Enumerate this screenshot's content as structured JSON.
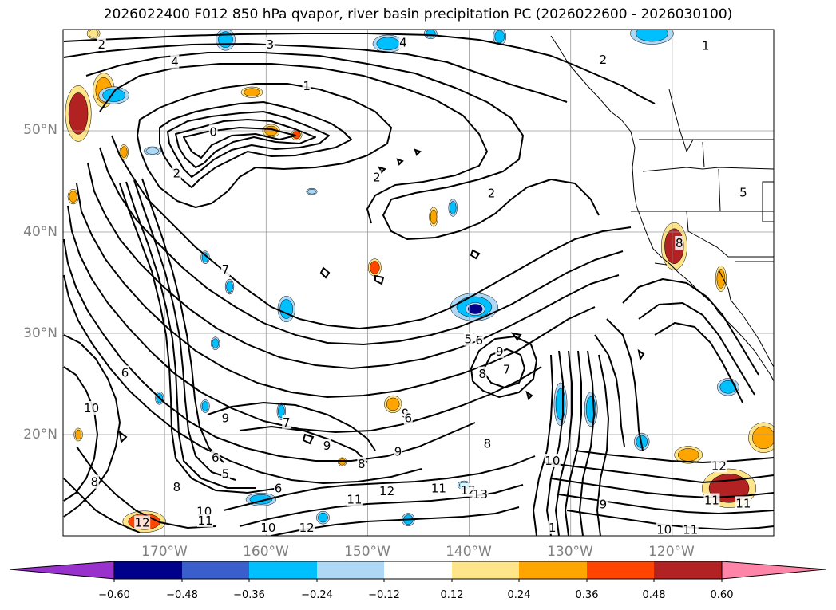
{
  "title": "2026022400 F012 850 hPa qvapor, river basin precipitation PC (2026022600 - 2026030100)",
  "lat_labels": [
    "50°N",
    "40°N",
    "30°N",
    "20°N"
  ],
  "lon_labels": [
    "170°W",
    "160°W",
    "150°W",
    "140°W",
    "130°W",
    "120°W"
  ],
  "map_extent": {
    "lon_min": -180,
    "lon_max": -110,
    "lat_min": 10,
    "lat_max": 60
  },
  "colorbar": {
    "ticks": [
      "−0.60",
      "−0.48",
      "−0.36",
      "−0.24",
      "−0.12",
      "0.12",
      "0.24",
      "0.36",
      "0.48",
      "0.60"
    ],
    "colors": [
      "#9932cc",
      "#00008b",
      "#3a5fcd",
      "#00bfff",
      "#add8f6",
      "#ffffff",
      "#ffe58a",
      "#ffa500",
      "#ff4500",
      "#b22222",
      "#ff85a8"
    ]
  },
  "contour_labels": [
    {
      "text": "2",
      "lon": -176.2,
      "lat": 58.5
    },
    {
      "text": "3",
      "lon": -159.6,
      "lat": 58.5
    },
    {
      "text": "4",
      "lon": -146.5,
      "lat": 58.7
    },
    {
      "text": "4",
      "lon": -169.0,
      "lat": 56.8
    },
    {
      "text": "1",
      "lon": -156.0,
      "lat": 54.4
    },
    {
      "text": "0",
      "lon": -165.2,
      "lat": 49.9
    },
    {
      "text": "2",
      "lon": -168.8,
      "lat": 45.8
    },
    {
      "text": "2",
      "lon": -149.1,
      "lat": 45.4
    },
    {
      "text": "2",
      "lon": -137.8,
      "lat": 43.8
    },
    {
      "text": "2",
      "lon": -126.8,
      "lat": 57.0
    },
    {
      "text": "5",
      "lon": -113.0,
      "lat": 43.9
    },
    {
      "text": "8",
      "lon": -119.3,
      "lat": 38.9
    },
    {
      "text": "5",
      "lon": -140.1,
      "lat": 29.4
    },
    {
      "text": "6",
      "lon": -139.0,
      "lat": 29.3
    },
    {
      "text": "9",
      "lon": -137.0,
      "lat": 28.2
    },
    {
      "text": "8",
      "lon": -138.7,
      "lat": 26.0
    },
    {
      "text": "7",
      "lon": -136.3,
      "lat": 26.4
    },
    {
      "text": "10",
      "lon": -177.2,
      "lat": 22.6
    },
    {
      "text": "6",
      "lon": -173.9,
      "lat": 26.1
    },
    {
      "text": "9",
      "lon": -164.0,
      "lat": 21.6
    },
    {
      "text": "7",
      "lon": -158.0,
      "lat": 21.2
    },
    {
      "text": "6",
      "lon": -165.0,
      "lat": 17.7
    },
    {
      "text": "5",
      "lon": -164.0,
      "lat": 16.1
    },
    {
      "text": "6",
      "lon": -158.8,
      "lat": 14.7
    },
    {
      "text": "8",
      "lon": -176.9,
      "lat": 15.3
    },
    {
      "text": "8",
      "lon": -168.8,
      "lat": 14.8
    },
    {
      "text": "9",
      "lon": -154.0,
      "lat": 18.9
    },
    {
      "text": "8",
      "lon": -150.6,
      "lat": 17.1
    },
    {
      "text": "9",
      "lon": -147.0,
      "lat": 18.3
    },
    {
      "text": "9",
      "lon": -146.3,
      "lat": 22.1
    },
    {
      "text": "6",
      "lon": -146.0,
      "lat": 21.6
    },
    {
      "text": "8",
      "lon": -138.2,
      "lat": 19.1
    },
    {
      "text": "10",
      "lon": -131.8,
      "lat": 17.4
    },
    {
      "text": "10",
      "lon": -166.1,
      "lat": 12.4
    },
    {
      "text": "11",
      "lon": -166.0,
      "lat": 11.5
    },
    {
      "text": "12",
      "lon": -172.2,
      "lat": 11.3
    },
    {
      "text": "10",
      "lon": -159.8,
      "lat": 10.8
    },
    {
      "text": "12",
      "lon": -156.0,
      "lat": 10.8
    },
    {
      "text": "11",
      "lon": -151.3,
      "lat": 13.6
    },
    {
      "text": "12",
      "lon": -148.1,
      "lat": 14.4
    },
    {
      "text": "11",
      "lon": -143.0,
      "lat": 14.7
    },
    {
      "text": "12",
      "lon": -140.1,
      "lat": 14.5
    },
    {
      "text": "13",
      "lon": -138.9,
      "lat": 14.1
    },
    {
      "text": "9",
      "lon": -126.8,
      "lat": 13.1
    },
    {
      "text": "10",
      "lon": -120.8,
      "lat": 10.6
    },
    {
      "text": "11",
      "lon": -118.2,
      "lat": 10.6
    },
    {
      "text": "11",
      "lon": -116.1,
      "lat": 13.5
    },
    {
      "text": "11",
      "lon": -113.0,
      "lat": 13.2
    },
    {
      "text": "12",
      "lon": -115.4,
      "lat": 16.9
    },
    {
      "text": "1",
      "lon": -131.8,
      "lat": 10.8
    },
    {
      "text": "1",
      "lon": -116.7,
      "lat": 58.4
    },
    {
      "text": "7",
      "lon": -164.0,
      "lat": 36.3
    }
  ],
  "precip_patches": [
    {
      "lon": -178.5,
      "lat": 51.7,
      "rx": 12,
      "ry": 26,
      "level": 0.48
    },
    {
      "lon": -176.0,
      "lat": 54.0,
      "rx": 10,
      "ry": 16,
      "level": 0.24
    },
    {
      "lon": -161.4,
      "lat": 53.8,
      "rx": 10,
      "ry": 5,
      "level": 0.24
    },
    {
      "lon": -174.0,
      "lat": 47.9,
      "rx": 4,
      "ry": 7,
      "level": 0.24
    },
    {
      "lon": -179.0,
      "lat": 43.5,
      "rx": 5,
      "ry": 7,
      "level": 0.24
    },
    {
      "lon": -159.5,
      "lat": 50.0,
      "rx": 8,
      "ry": 6,
      "level": 0.24
    },
    {
      "lon": -157.0,
      "lat": 49.6,
      "rx": 5,
      "ry": 5,
      "level": 0.36
    },
    {
      "lon": -149.3,
      "lat": 36.5,
      "rx": 6,
      "ry": 8,
      "level": 0.36
    },
    {
      "lon": -143.5,
      "lat": 41.5,
      "rx": 4,
      "ry": 9,
      "level": 0.24
    },
    {
      "lon": -119.8,
      "lat": 38.6,
      "rx": 12,
      "ry": 22,
      "level": 0.48
    },
    {
      "lon": -115.2,
      "lat": 35.4,
      "rx": 5,
      "ry": 12,
      "level": 0.24
    },
    {
      "lon": -114.4,
      "lat": 14.7,
      "rx": 25,
      "ry": 18,
      "level": 0.48
    },
    {
      "lon": -118.4,
      "lat": 18.0,
      "rx": 13,
      "ry": 8,
      "level": 0.24
    },
    {
      "lon": -111.0,
      "lat": 19.7,
      "rx": 14,
      "ry": 14,
      "level": 0.24
    },
    {
      "lon": -172.0,
      "lat": 11.4,
      "rx": 20,
      "ry": 10,
      "level": 0.36
    },
    {
      "lon": -147.5,
      "lat": 23.0,
      "rx": 8,
      "ry": 8,
      "level": 0.24
    },
    {
      "lon": -178.5,
      "lat": 20.0,
      "rx": 4,
      "ry": 6,
      "level": 0.24
    },
    {
      "lon": -152.5,
      "lat": 17.3,
      "rx": 4,
      "ry": 4,
      "level": 0.24
    },
    {
      "lon": -177.0,
      "lat": 59.6,
      "rx": 6,
      "ry": 5,
      "level": 0.12
    },
    {
      "lon": -164.0,
      "lat": 59.0,
      "rx": 9,
      "ry": 10,
      "level": -0.24
    },
    {
      "lon": -148.0,
      "lat": 58.6,
      "rx": 14,
      "ry": 8,
      "level": -0.24
    },
    {
      "lon": -143.8,
      "lat": 59.6,
      "rx": 6,
      "ry": 5,
      "level": -0.24
    },
    {
      "lon": -137.0,
      "lat": 59.3,
      "rx": 6,
      "ry": 8,
      "level": -0.24
    },
    {
      "lon": -122.0,
      "lat": 59.6,
      "rx": 20,
      "ry": 10,
      "level": -0.24
    },
    {
      "lon": -139.5,
      "lat": 32.6,
      "rx": 22,
      "ry": 13,
      "level": -0.24
    },
    {
      "lon": -139.4,
      "lat": 32.4,
      "rx": 9,
      "ry": 6,
      "level": -0.48
    },
    {
      "lon": -158.0,
      "lat": 32.4,
      "rx": 8,
      "ry": 12,
      "level": -0.24
    },
    {
      "lon": -175.0,
      "lat": 53.5,
      "rx": 14,
      "ry": 8,
      "level": -0.24
    },
    {
      "lon": -131.0,
      "lat": 23.0,
      "rx": 6,
      "ry": 20,
      "level": -0.24
    },
    {
      "lon": -128.0,
      "lat": 22.5,
      "rx": 6,
      "ry": 16,
      "level": -0.24
    },
    {
      "lon": -114.5,
      "lat": 24.7,
      "rx": 10,
      "ry": 8,
      "level": -0.24
    },
    {
      "lon": -123.0,
      "lat": 19.3,
      "rx": 7,
      "ry": 8,
      "level": -0.24
    },
    {
      "lon": -155.5,
      "lat": 44.0,
      "rx": 5,
      "ry": 3,
      "level": -0.12
    },
    {
      "lon": -160.5,
      "lat": 13.6,
      "rx": 14,
      "ry": 6,
      "level": -0.24
    },
    {
      "lon": -170.5,
      "lat": 23.6,
      "rx": 4,
      "ry": 6,
      "level": -0.24
    },
    {
      "lon": -166.0,
      "lat": 22.8,
      "rx": 4,
      "ry": 6,
      "level": -0.24
    },
    {
      "lon": -165.0,
      "lat": 29.0,
      "rx": 4,
      "ry": 6,
      "level": -0.24
    },
    {
      "lon": -163.6,
      "lat": 34.6,
      "rx": 4,
      "ry": 7,
      "level": -0.24
    },
    {
      "lon": -141.6,
      "lat": 42.4,
      "rx": 4,
      "ry": 8,
      "level": -0.24
    },
    {
      "lon": -146.0,
      "lat": 11.6,
      "rx": 6,
      "ry": 6,
      "level": -0.24
    },
    {
      "lon": -140.5,
      "lat": 15.0,
      "rx": 6,
      "ry": 4,
      "level": -0.24
    },
    {
      "lon": -154.4,
      "lat": 11.8,
      "rx": 6,
      "ry": 6,
      "level": -0.24
    },
    {
      "lon": -171.2,
      "lat": 48.0,
      "rx": 8,
      "ry": 4,
      "level": -0.12
    },
    {
      "lon": -158.5,
      "lat": 22.3,
      "rx": 4,
      "ry": 8,
      "level": -0.24
    },
    {
      "lon": -166.0,
      "lat": 37.5,
      "rx": 4,
      "ry": 6,
      "level": -0.24
    }
  ]
}
